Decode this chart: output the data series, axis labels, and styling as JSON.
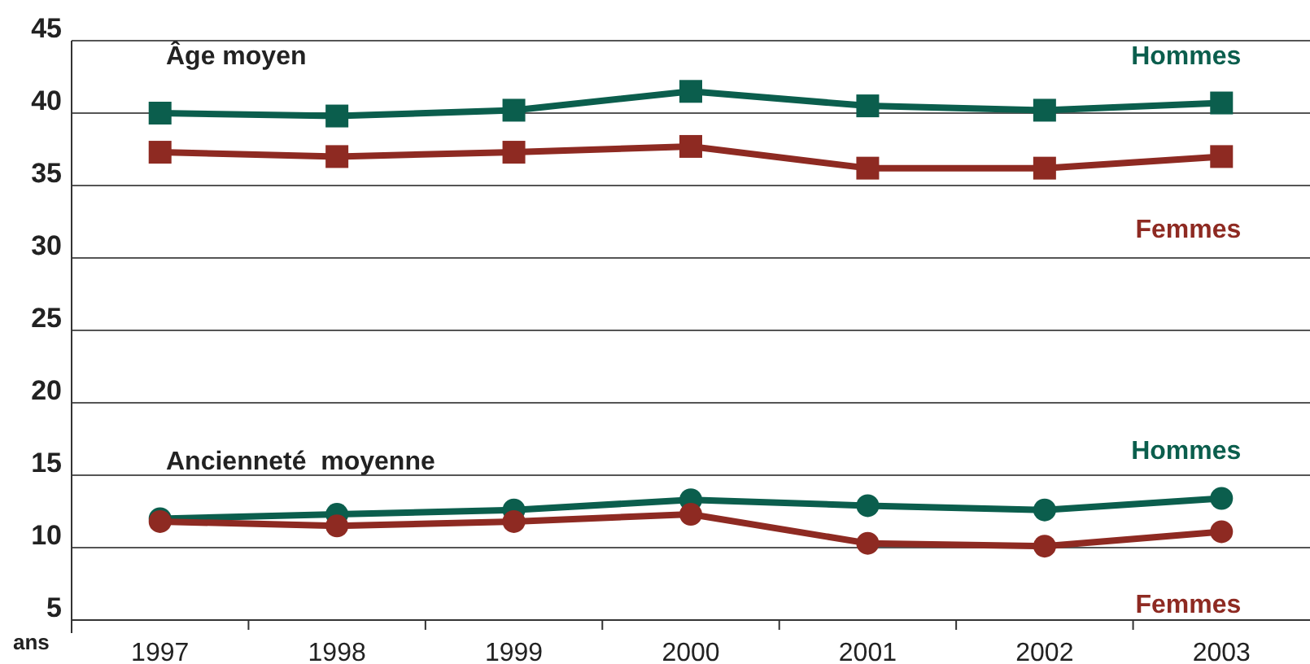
{
  "chart_data": {
    "type": "line",
    "ylabel": "ans",
    "categories": [
      "1997",
      "1998",
      "1999",
      "2000",
      "2001",
      "2002",
      "2003"
    ],
    "series": [
      {
        "name": "Hommes",
        "color": "#0b5e4d",
        "marker": "square",
        "values": [
          40.0,
          39.8,
          40.2,
          41.5,
          40.5,
          40.2,
          40.7
        ]
      },
      {
        "name": "Femmes",
        "color": "#8e2a22",
        "marker": "square",
        "values": [
          37.3,
          37.0,
          37.3,
          37.7,
          36.2,
          36.2,
          37.0
        ]
      },
      {
        "name": "Hommes",
        "color": "#0b5e4d",
        "marker": "circle",
        "values": [
          12.0,
          12.3,
          12.6,
          13.3,
          12.9,
          12.6,
          13.4
        ]
      },
      {
        "name": "Femmes",
        "color": "#8e2a22",
        "marker": "circle",
        "values": [
          11.8,
          11.5,
          11.8,
          12.3,
          10.3,
          10.1,
          11.1
        ]
      }
    ],
    "annotations": [
      "Âge moyen",
      "Ancienneté  moyenne"
    ],
    "ylim": [
      5,
      45
    ],
    "yticks": [
      5,
      10,
      15,
      20,
      25,
      30,
      35,
      40,
      45
    ],
    "grid": "y"
  }
}
